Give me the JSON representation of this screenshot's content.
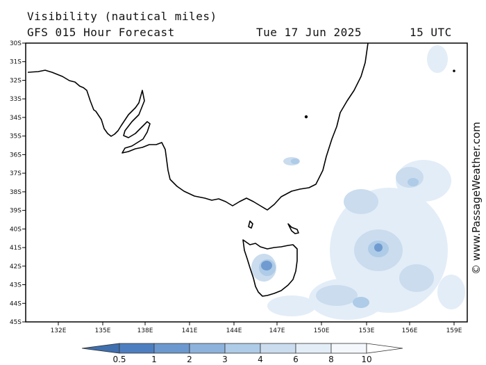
{
  "header": {
    "product": "Visibility (nautical miles)",
    "forecast": "GFS 015 Hour Forecast",
    "date": "Tue 17 Jun 2025",
    "time": "15 UTC"
  },
  "axes": {
    "lat_labels": [
      "30S",
      "31S",
      "32S",
      "33S",
      "34S",
      "35S",
      "36S",
      "37S",
      "38S",
      "39S",
      "40S",
      "41S",
      "42S",
      "43S",
      "44S",
      "45S"
    ],
    "lon_labels": [
      "132E",
      "135E",
      "138E",
      "141E",
      "144E",
      "147E",
      "150E",
      "153E",
      "156E",
      "159E"
    ]
  },
  "watermark": "© www.PassageWeather.com",
  "legend": {
    "labels": [
      "0.5",
      "1",
      "2",
      "3",
      "4",
      "6",
      "8",
      "10"
    ],
    "colors": [
      "#3f6fae",
      "#4d7fc0",
      "#6b98cf",
      "#8db2dc",
      "#aecbe7",
      "#cadcee",
      "#e3edf7",
      "#ffffff"
    ]
  },
  "colors": {
    "coast": "#000000",
    "frame": "#000000",
    "haze_light": "#dfe9f5",
    "haze_mid": "#bcd2ea",
    "haze_dark": "#6f9bd0"
  }
}
